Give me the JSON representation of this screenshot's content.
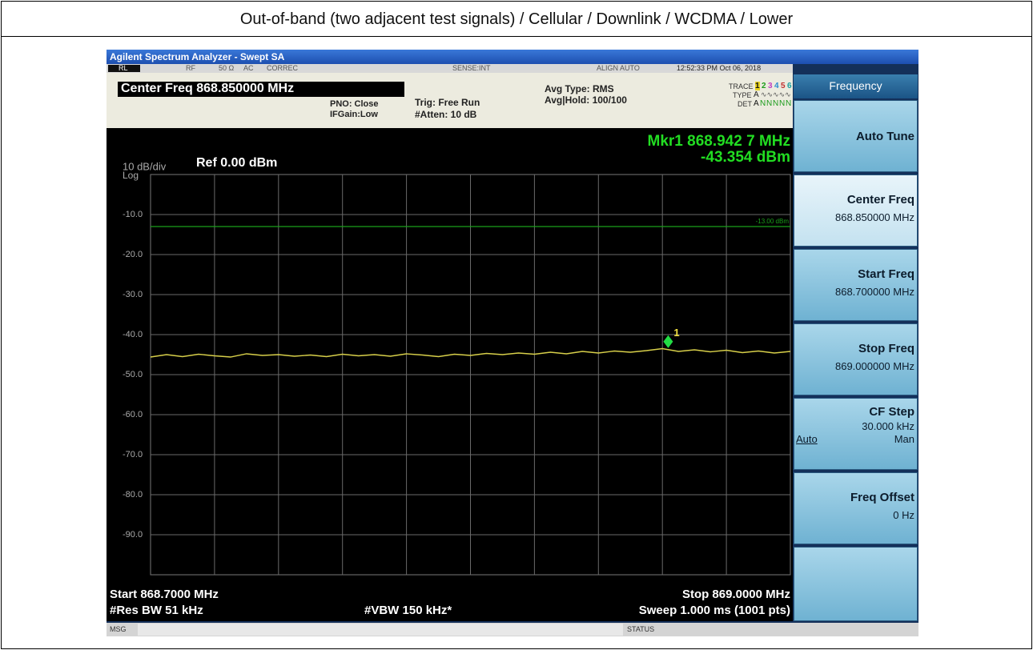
{
  "page_title": "Out-of-band (two adjacent test signals) / Cellular / Downlink / WCDMA / Lower",
  "window_title": "Agilent Spectrum Analyzer - Swept SA",
  "status_bar": [
    "RL",
    "RF",
    "50 Ω",
    "AC",
    "CORREC",
    "SENSE:INT",
    "ALIGN AUTO",
    "12:52:33 PM Oct 06, 2018"
  ],
  "header": {
    "center_freq": "Center Freq 868.850000 MHz",
    "pno": "PNO: Close",
    "ifgain": "IFGain:Low",
    "trig": "Trig: Free Run",
    "atten": "#Atten: 10 dB",
    "avg_type": "Avg Type: RMS",
    "avg_hold": "Avg|Hold: 100/100",
    "trace_label": "TRACE",
    "trace_numbers": [
      "1",
      "2",
      "3",
      "4",
      "5",
      "6"
    ],
    "type_label": "TYPE",
    "type_value": "A",
    "det_label": "DET",
    "det_values": [
      "A",
      "N",
      "N",
      "N",
      "N",
      "N"
    ]
  },
  "chart_data": {
    "type": "line",
    "scale_label": "10 dB/div",
    "scale_type": "Log",
    "reference": "Ref 0.00 dBm",
    "marker_readout": [
      "Mkr1 868.942 7 MHz",
      "-43.354 dBm"
    ],
    "xlim": [
      868.7,
      869.0
    ],
    "ylim": [
      -100,
      0
    ],
    "yticks": [
      {
        "value": -10,
        "label": "-10.0"
      },
      {
        "value": -20,
        "label": "-20.0"
      },
      {
        "value": -30,
        "label": "-30.0"
      },
      {
        "value": -40,
        "label": "-40.0"
      },
      {
        "value": -50,
        "label": "-50.0"
      },
      {
        "value": -60,
        "label": "-60.0"
      },
      {
        "value": -70,
        "label": "-70.0"
      },
      {
        "value": -80,
        "label": "-80.0"
      },
      {
        "value": -90,
        "label": "-90.0"
      }
    ],
    "grid": true,
    "color": "#d8d04a",
    "x": [
      868.7,
      868.7075,
      868.715,
      868.7225,
      868.73,
      868.7375,
      868.745,
      868.7525,
      868.76,
      868.7675,
      868.775,
      868.7825,
      868.79,
      868.7975,
      868.805,
      868.8125,
      868.82,
      868.8275,
      868.835,
      868.8425,
      868.85,
      868.8575,
      868.865,
      868.8725,
      868.88,
      868.8875,
      868.895,
      868.9025,
      868.91,
      868.9175,
      868.925,
      868.9325,
      868.94,
      868.9475,
      868.955,
      868.9625,
      868.97,
      868.9775,
      868.985,
      868.9925,
      869.0
    ],
    "values": [
      -45.6,
      -45.0,
      -45.5,
      -44.9,
      -45.3,
      -45.6,
      -44.8,
      -45.2,
      -45.0,
      -45.4,
      -45.1,
      -45.5,
      -44.9,
      -45.3,
      -45.0,
      -45.4,
      -44.8,
      -45.1,
      -45.5,
      -44.9,
      -45.2,
      -44.7,
      -45.0,
      -44.6,
      -44.9,
      -44.4,
      -44.8,
      -44.2,
      -44.6,
      -44.1,
      -44.4,
      -44.0,
      -43.5,
      -44.2,
      -43.8,
      -44.3,
      -43.9,
      -44.5,
      -44.1,
      -44.6,
      -44.2
    ],
    "limit_line": {
      "value": -13,
      "label": "-13.00 dBm",
      "color": "#1aa01a"
    },
    "marker": {
      "x": 868.9427,
      "y": -43.354,
      "label": "1",
      "color": "#22dd44"
    }
  },
  "footer": {
    "start": "Start 868.7000 MHz",
    "stop": "Stop 869.0000 MHz",
    "rbw": "#Res BW 51 kHz",
    "vbw": "#VBW 150 kHz*",
    "sweep": "Sweep  1.000 ms (1001 pts)"
  },
  "softkeys": {
    "title": "Frequency",
    "keys": [
      {
        "label": "Auto Tune"
      },
      {
        "label": "Center Freq",
        "value": "868.850000 MHz"
      },
      {
        "label": "Start Freq",
        "value": "868.700000 MHz"
      },
      {
        "label": "Stop Freq",
        "value": "869.000000 MHz"
      },
      {
        "label": "CF Step",
        "value": "30.000 kHz",
        "options": [
          "Auto",
          "Man"
        ]
      },
      {
        "label": "Freq Offset",
        "value": "0 Hz"
      }
    ]
  },
  "message_bar": {
    "msg": "MSG",
    "status": "STATUS"
  }
}
